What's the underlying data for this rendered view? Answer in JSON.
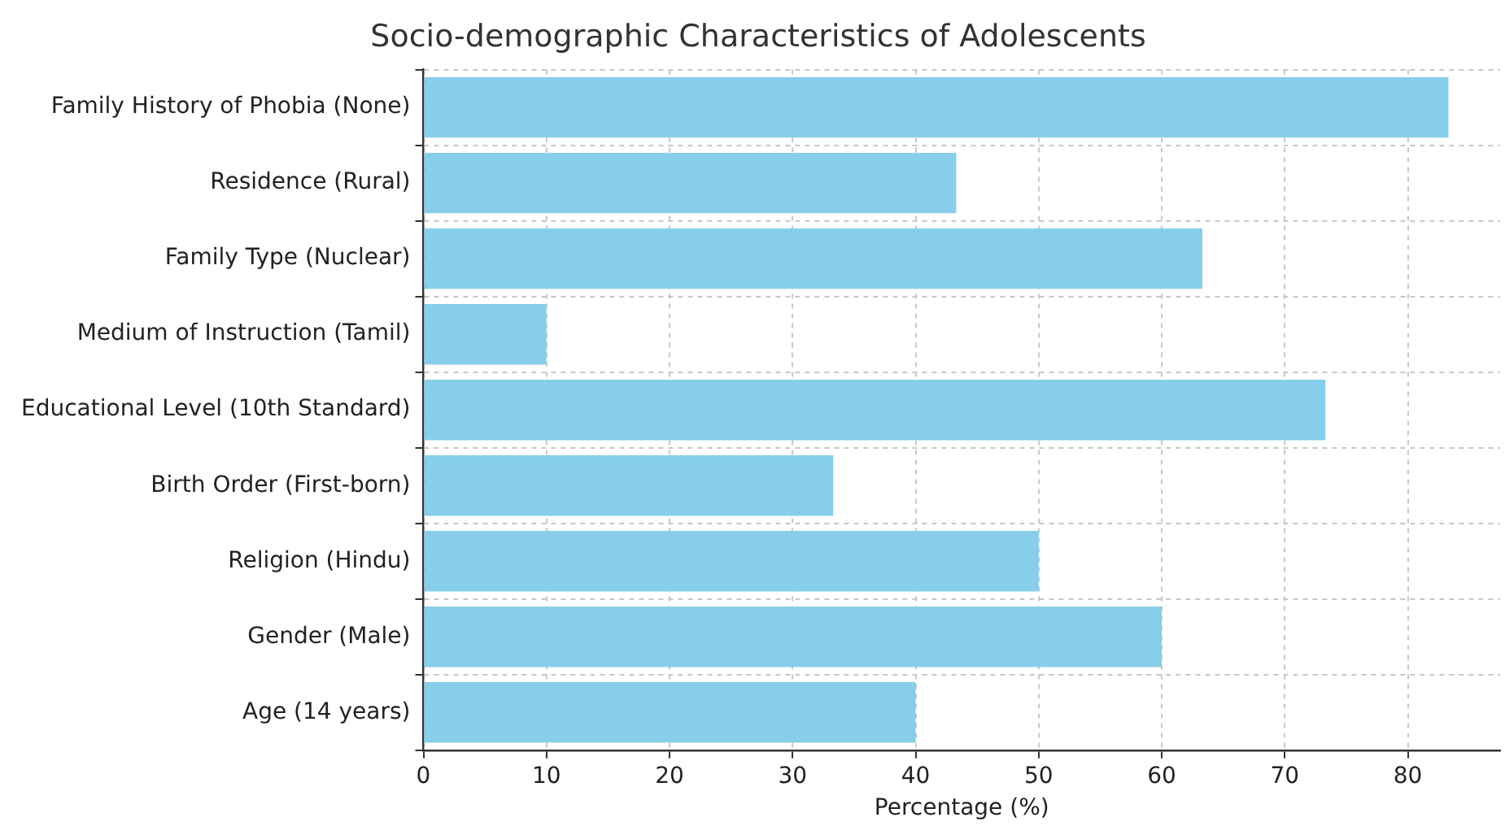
{
  "chart_data": {
    "type": "bar",
    "orientation": "horizontal",
    "title": "Socio-demographic Characteristics of Adolescents",
    "xlabel": "Percentage (%)",
    "categories": [
      "Family History of Phobia (None)",
      "Residence (Rural)",
      "Family Type (Nuclear)",
      "Medium of Instruction (Tamil)",
      "Educational Level (10th Standard)",
      "Birth Order (First-born)",
      "Religion (Hindu)",
      "Gender (Male)",
      "Age (14 years)"
    ],
    "values": [
      83.3,
      43.3,
      63.3,
      10,
      73.3,
      33.3,
      50,
      60,
      40
    ],
    "color": "#87ceeb",
    "xlim": [
      0,
      87.5
    ],
    "xticks": [
      0,
      10,
      20,
      30,
      40,
      50,
      60,
      70,
      80
    ],
    "grid": true
  }
}
